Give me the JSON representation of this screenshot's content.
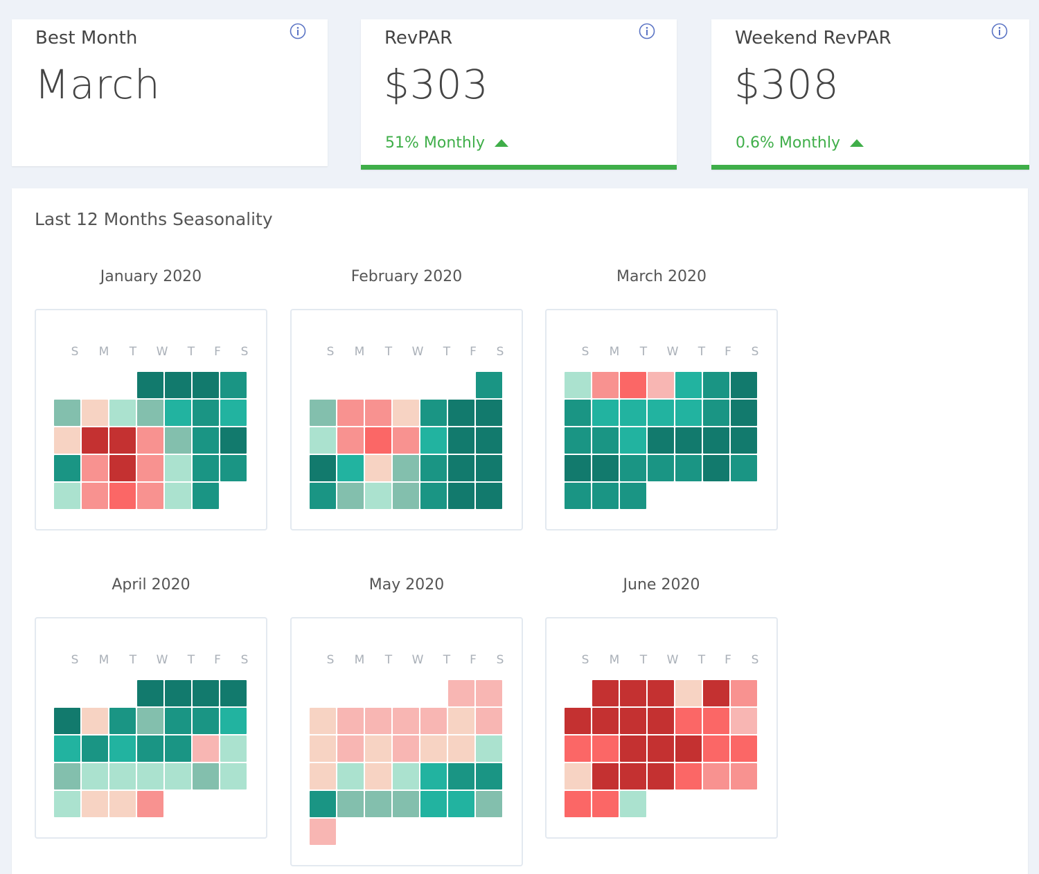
{
  "kpis": [
    {
      "label": "Best Month",
      "value": "March",
      "change": ""
    },
    {
      "label": "RevPAR",
      "value": "$303",
      "change": "51% Monthly"
    },
    {
      "label": "Weekend RevPAR",
      "value": "$308",
      "change": "0.6% Monthly"
    }
  ],
  "icons": {
    "info": "info-circle-icon",
    "trend": "triangle-up-icon"
  },
  "colors": {
    "accent_green": "#3fae49",
    "scale": {
      "T1": "#127a6d",
      "T2": "#1a9584",
      "T3": "#22b3a0",
      "T4": "#83bfad",
      "T5": "#abe2cf",
      "N": "#f7d3c3",
      "P1": "#f8b6b3",
      "P2": "#f89290",
      "P3": "#fb6766",
      "P4": "#c43131"
    }
  },
  "seasonality": {
    "title": "Last 12 Months Seasonality",
    "weekday_labels": [
      "S",
      "M",
      "T",
      "W",
      "T",
      "F",
      "S"
    ],
    "months": [
      {
        "title": "January 2020",
        "offset": 3,
        "days": [
          "T1",
          "T1",
          "T1",
          "T2",
          "T4",
          "N",
          "T5",
          "T4",
          "T3",
          "T2",
          "T3",
          "N",
          "P4",
          "P4",
          "P2",
          "T4",
          "T2",
          "T1",
          "T2",
          "P2",
          "P4",
          "P2",
          "T5",
          "T2",
          "T2",
          "T5",
          "P2",
          "P3",
          "P2",
          "T5",
          "T2"
        ]
      },
      {
        "title": "February 2020",
        "offset": 6,
        "days": [
          "T2",
          "T4",
          "P2",
          "P2",
          "N",
          "T2",
          "T1",
          "T1",
          "T5",
          "P2",
          "P3",
          "P2",
          "T3",
          "T1",
          "T1",
          "T1",
          "T3",
          "N",
          "T4",
          "T2",
          "T1",
          "T1",
          "T2",
          "T4",
          "T5",
          "T4",
          "T2",
          "T1",
          "T1"
        ]
      },
      {
        "title": "March 2020",
        "offset": 0,
        "days": [
          "T5",
          "P2",
          "P3",
          "P1",
          "T3",
          "T2",
          "T1",
          "T2",
          "T3",
          "T3",
          "T3",
          "T3",
          "T2",
          "T1",
          "T2",
          "T2",
          "T3",
          "T1",
          "T1",
          "T1",
          "T1",
          "T1",
          "T1",
          "T2",
          "T2",
          "T2",
          "T1",
          "T2",
          "T2",
          "T2",
          "T2"
        ]
      },
      {
        "title": "April 2020",
        "offset": 3,
        "days": [
          "T1",
          "T1",
          "T1",
          "T1",
          "T1",
          "N",
          "T2",
          "T4",
          "T2",
          "T2",
          "T3",
          "T3",
          "T2",
          "T3",
          "T2",
          "T2",
          "P1",
          "T5",
          "T4",
          "T5",
          "T5",
          "T5",
          "T5",
          "T4",
          "T5",
          "T5",
          "N",
          "N",
          "P2"
        ]
      },
      {
        "title": "May 2020",
        "offset": 5,
        "days": [
          "P1",
          "P1",
          "N",
          "P1",
          "P1",
          "P1",
          "P1",
          "N",
          "P1",
          "N",
          "P1",
          "N",
          "P1",
          "N",
          "N",
          "T5",
          "N",
          "T5",
          "N",
          "T5",
          "T3",
          "T2",
          "T2",
          "T2",
          "T4",
          "T4",
          "T4",
          "T3",
          "T3",
          "T4",
          "P1"
        ]
      },
      {
        "title": "June 2020",
        "offset": 1,
        "days": [
          "P4",
          "P4",
          "P4",
          "N",
          "P4",
          "P2",
          "P4",
          "P4",
          "P4",
          "P4",
          "P3",
          "P3",
          "P1",
          "P3",
          "P3",
          "P4",
          "P4",
          "P4",
          "P3",
          "P3",
          "N",
          "P4",
          "P4",
          "P4",
          "P3",
          "P2",
          "P2",
          "P3",
          "P3",
          "T5"
        ]
      }
    ]
  }
}
